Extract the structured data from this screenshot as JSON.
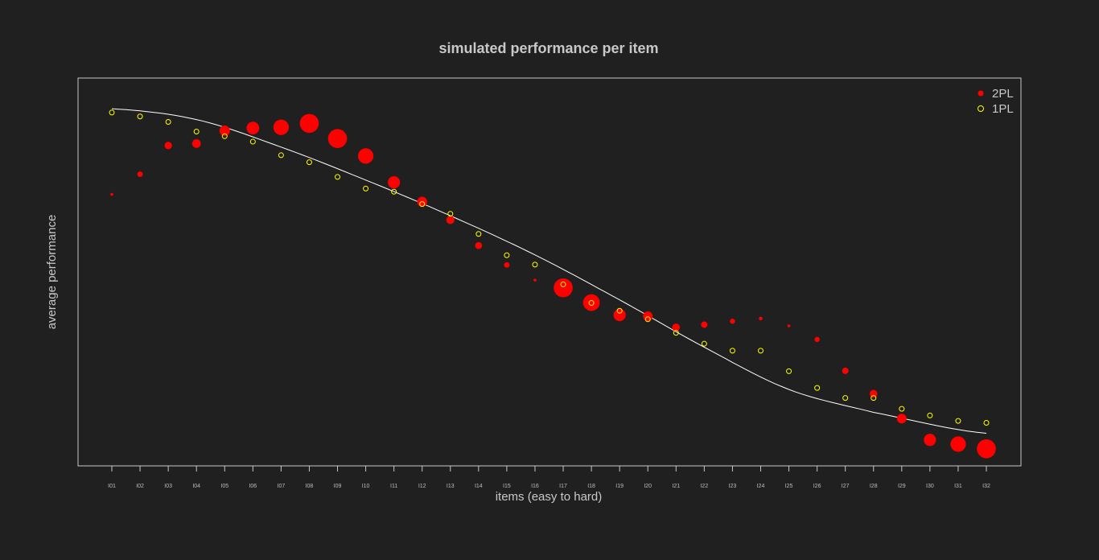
{
  "chart_data": {
    "type": "scatter",
    "title": "simulated performance per item",
    "xlabel": "items (easy to hard)",
    "ylabel": "average performance",
    "categories": [
      "I01",
      "I02",
      "I03",
      "I04",
      "I05",
      "I06",
      "I07",
      "I08",
      "I09",
      "I10",
      "I11",
      "I12",
      "I13",
      "I14",
      "I15",
      "I16",
      "I17",
      "I18",
      "I19",
      "I20",
      "I21",
      "I22",
      "I23",
      "I24",
      "I25",
      "I26",
      "I27",
      "I28",
      "I29",
      "I30",
      "I31",
      "I32"
    ],
    "ylim": [
      0,
      1
    ],
    "series": [
      {
        "name": "2PL",
        "marker": "filled-circle",
        "color": "#ff0000",
        "values": [
          0.7,
          0.752,
          0.826,
          0.831,
          0.864,
          0.871,
          0.873,
          0.883,
          0.844,
          0.799,
          0.731,
          0.681,
          0.634,
          0.568,
          0.518,
          0.479,
          0.459,
          0.421,
          0.389,
          0.386,
          0.357,
          0.364,
          0.373,
          0.38,
          0.361,
          0.326,
          0.245,
          0.186,
          0.122,
          0.067,
          0.056,
          0.044
        ],
        "size": [
          0.2,
          0.8,
          1.2,
          1.5,
          1.9,
          2.4,
          3.0,
          3.8,
          3.8,
          3.0,
          2.3,
          1.8,
          1.4,
          1.1,
          0.8,
          0.2,
          3.8,
          3.3,
          2.3,
          1.7,
          1.3,
          1.0,
          0.7,
          0.4,
          0.2,
          0.7,
          1.0,
          1.3,
          1.7,
          2.3,
          3.0,
          3.8
        ]
      },
      {
        "name": "1PL",
        "marker": "open-circle",
        "color": "#ffff00",
        "values": [
          0.911,
          0.901,
          0.887,
          0.862,
          0.85,
          0.836,
          0.801,
          0.783,
          0.745,
          0.715,
          0.707,
          0.675,
          0.65,
          0.598,
          0.543,
          0.519,
          0.468,
          0.42,
          0.4,
          0.378,
          0.343,
          0.315,
          0.297,
          0.297,
          0.244,
          0.201,
          0.175,
          0.175,
          0.147,
          0.13,
          0.116,
          0.111
        ]
      }
    ],
    "curve": {
      "color": "#ffffff",
      "x": [
        1,
        4,
        7,
        10,
        13,
        16,
        19,
        22,
        25,
        28,
        32
      ],
      "y": [
        0.921,
        0.893,
        0.822,
        0.737,
        0.645,
        0.544,
        0.428,
        0.306,
        0.197,
        0.138,
        0.084
      ]
    },
    "legend": {
      "position": "top-right",
      "entries": [
        {
          "label": "2PL",
          "marker": "filled-circle",
          "color": "#ff0000"
        },
        {
          "label": "1PL",
          "marker": "open-circle",
          "color": "#ffff00"
        }
      ]
    },
    "axis_ticks_y": false,
    "grid": false
  }
}
